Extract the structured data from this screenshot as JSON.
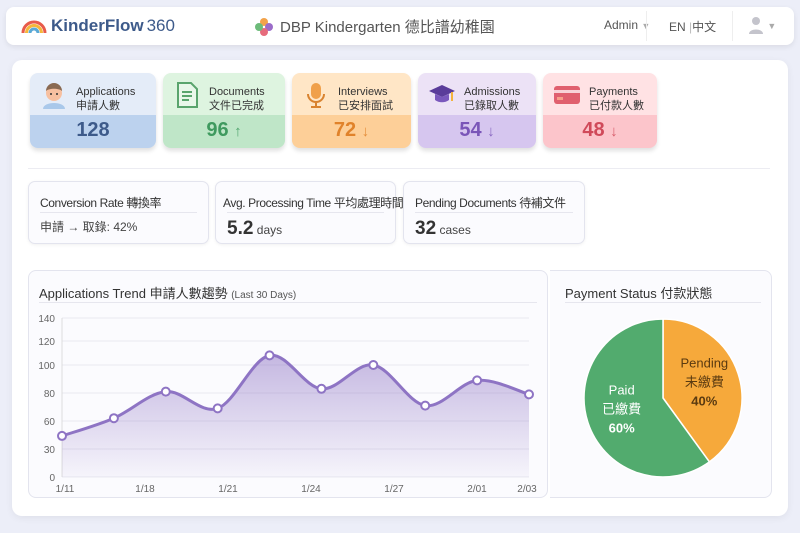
{
  "header": {
    "brand": "KinderFlow",
    "brand_num": "360",
    "site": "DBP Kindergarten 德比譜幼稚園",
    "admin": "Admin",
    "lang_en": "EN",
    "lang_sep": "|",
    "lang_zh": "中文"
  },
  "kpis": [
    {
      "label_en": "Applications",
      "label_zh": "申請人數",
      "value": "128",
      "trend": "",
      "icon": "child-icon",
      "color": "#3d5a8a",
      "top": "#e4ecf8",
      "bottom": "#bcd2ee"
    },
    {
      "label_en": "Documents",
      "label_zh": "文件已完成",
      "value": "96",
      "trend": "↑",
      "icon": "document-icon",
      "color": "#3f9a5f",
      "top": "#def4e0",
      "bottom": "#bfe6c8"
    },
    {
      "label_en": "Interviews",
      "label_zh": "已安排面試",
      "value": "72",
      "trend": "↓",
      "icon": "microphone-icon",
      "color": "#e0822a",
      "top": "#ffe6c6",
      "bottom": "#fdcf98"
    },
    {
      "label_en": "Admissions",
      "label_zh": "已錄取人數",
      "value": "54",
      "trend": "↓",
      "icon": "graduation-cap-icon",
      "color": "#7a55b8",
      "top": "#ece2f6",
      "bottom": "#d6c6ef"
    },
    {
      "label_en": "Payments",
      "label_zh": "已付款人數",
      "value": "48",
      "trend": "↓",
      "icon": "credit-card-icon",
      "color": "#d04a5a",
      "top": "#ffe2e4",
      "bottom": "#fcc5cb"
    }
  ],
  "info": [
    {
      "title": "Conversion Rate 轉換率",
      "value": "申請 → 取錄: 42%",
      "unit": ""
    },
    {
      "title": "Avg. Processing Time 平均處理時間",
      "value": "5.2",
      "unit": "days"
    },
    {
      "title": "Pending Documents 待補文件",
      "value": "32",
      "unit": "cases"
    }
  ],
  "chart_data": [
    {
      "type": "area",
      "title": "Applications Trend 申請人數趨勢",
      "subtitle": "(Last 30 Days)",
      "yticks": [
        0,
        30,
        60,
        80,
        100,
        120,
        140
      ],
      "xticks": [
        "1/11",
        "1/18",
        "1/21",
        "1/24",
        "1/27",
        "2/01",
        "2/03"
      ],
      "values": [
        44,
        62,
        81,
        69,
        108,
        83,
        100,
        71,
        89,
        79
      ],
      "ylim": [
        0,
        140
      ],
      "grid": true,
      "color": "#8e74c4"
    },
    {
      "type": "pie",
      "title": "Payment Status 付款狀態",
      "slices": [
        {
          "label_en": "Paid",
          "label_zh": "已繳費",
          "value": 60,
          "pct": "60%",
          "color": "#52ab6e"
        },
        {
          "label_en": "Pending",
          "label_zh": "未繳費",
          "value": 40,
          "pct": "40%",
          "color": "#f6a93b"
        }
      ]
    }
  ]
}
